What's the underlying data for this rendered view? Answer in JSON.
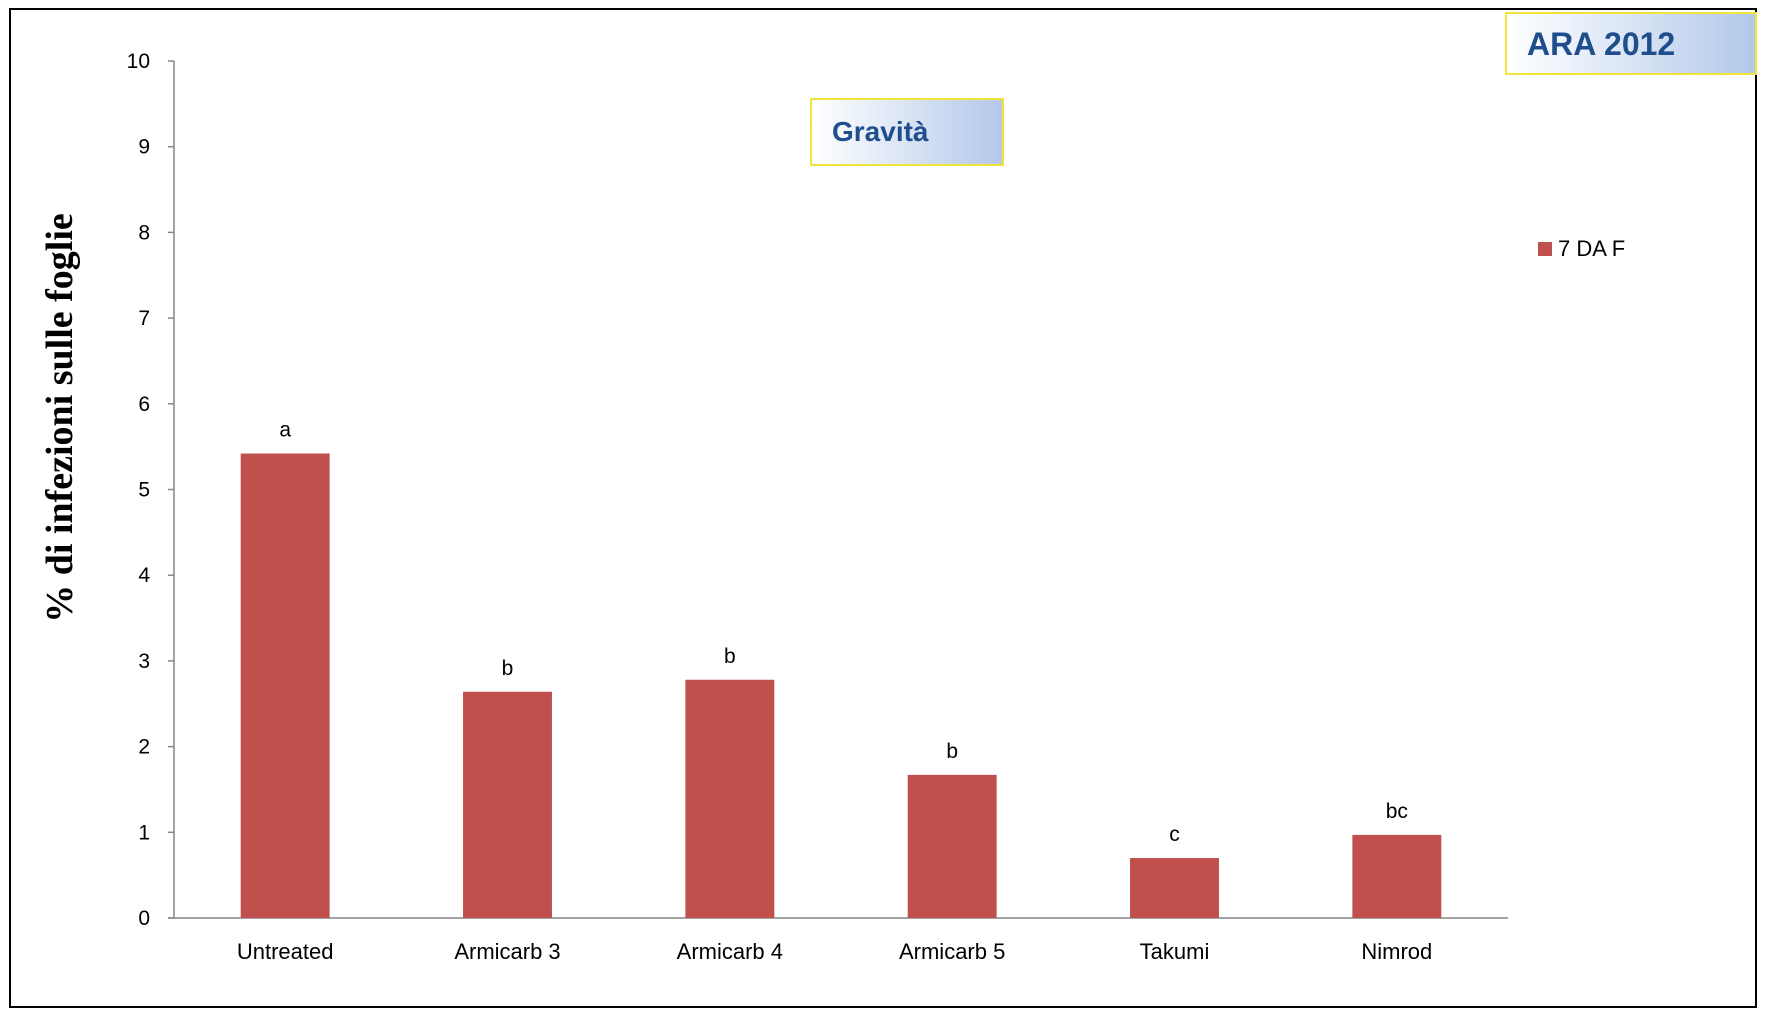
{
  "chart_data": {
    "type": "bar",
    "title": "",
    "xlabel": "",
    "ylabel": "% di infezioni sulle  foglie",
    "ylim": [
      0,
      10
    ],
    "yticks": [
      "0",
      "1",
      "2",
      "3",
      "4",
      "5",
      "6",
      "7",
      "8",
      "9",
      "10"
    ],
    "categories": [
      "Untreated",
      "Armicarb 3",
      "Armicarb 4",
      "Armicarb 5",
      "Takumi",
      "Nimrod"
    ],
    "series": [
      {
        "name": "7 DA F",
        "color": "#c0504d",
        "values": [
          5.42,
          2.64,
          2.78,
          1.67,
          0.7,
          0.97
        ],
        "data_labels": [
          "a",
          "b",
          "b",
          "b",
          "c",
          "bc"
        ]
      }
    ],
    "grid": false,
    "legend_position": "right",
    "annotations": {
      "inner_title": "Gravità",
      "corner_tag": "ARA 2012"
    }
  }
}
